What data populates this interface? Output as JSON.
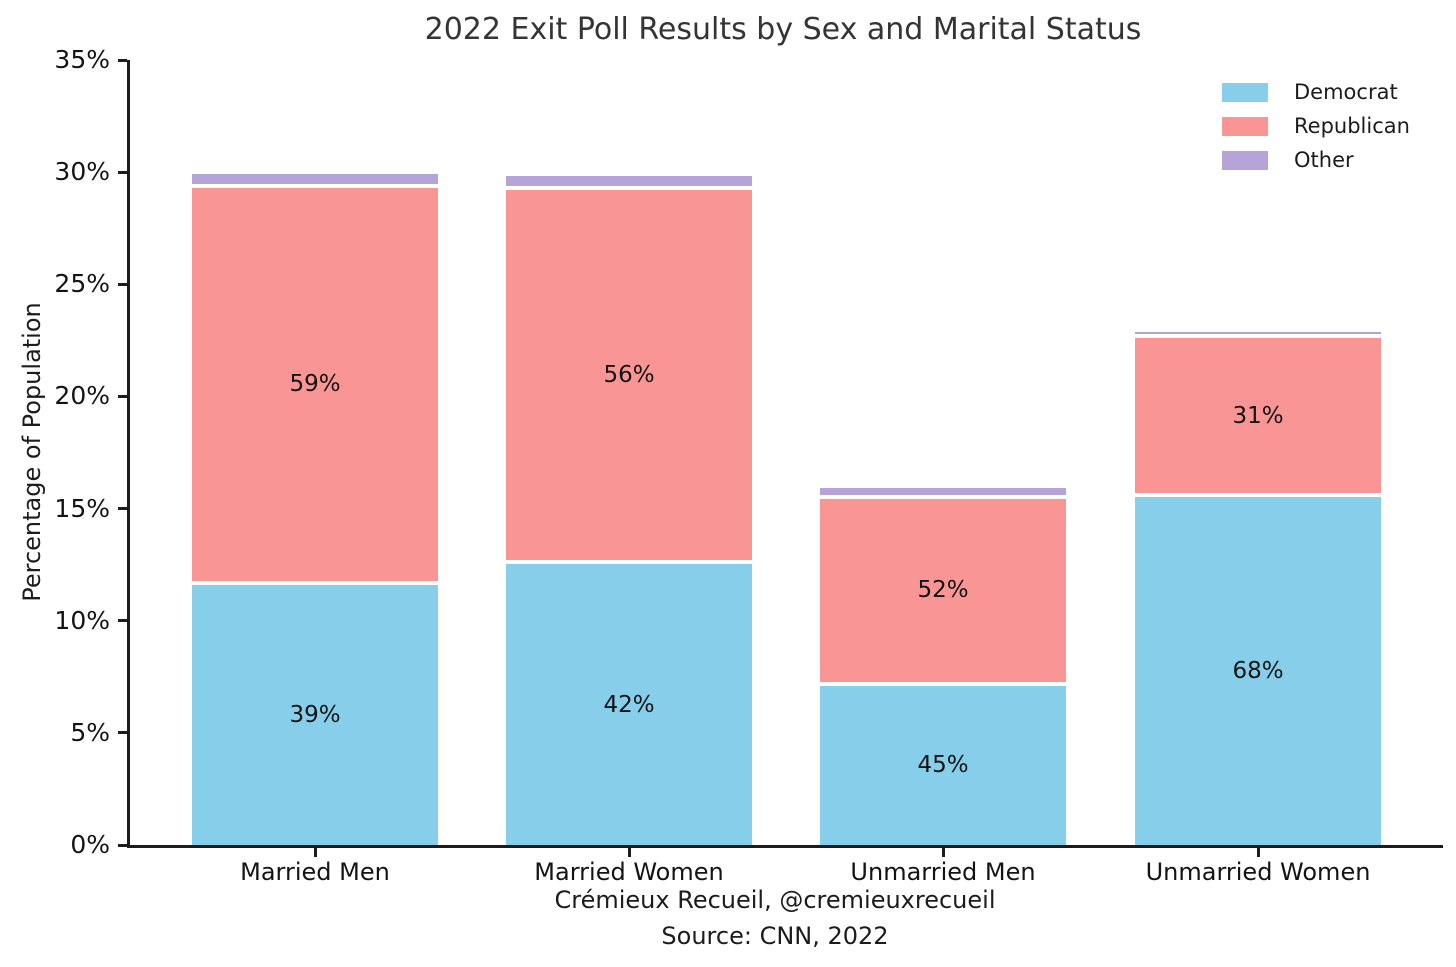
{
  "chart_data": {
    "type": "bar",
    "stacked": true,
    "title": "2022 Exit Poll Results by Sex and Marital Status",
    "ylabel": "Percentage of Population",
    "xlabel_lines": [
      "Crémieux Recueil, @cremieuxrecueil",
      "Source: CNN, 2022"
    ],
    "categories": [
      "Married Men",
      "Married Women",
      "Unmarried Men",
      "Unmarried Women"
    ],
    "ylim": [
      0,
      35
    ],
    "yticks": [
      {
        "value": 0,
        "label": "0%"
      },
      {
        "value": 5,
        "label": "5%"
      },
      {
        "value": 10,
        "label": "10%"
      },
      {
        "value": 15,
        "label": "15%"
      },
      {
        "value": 20,
        "label": "20%"
      },
      {
        "value": 25,
        "label": "25%"
      },
      {
        "value": 30,
        "label": "30%"
      },
      {
        "value": 35,
        "label": "35%"
      }
    ],
    "series": [
      {
        "name": "Democrat",
        "color": "#87CEEB",
        "values": [
          11.7,
          12.6,
          7.2,
          15.6
        ],
        "segment_labels": [
          "39%",
          "42%",
          "45%",
          "68%"
        ]
      },
      {
        "name": "Republican",
        "color": "#FA9595",
        "values": [
          17.7,
          16.7,
          8.3,
          7.1
        ],
        "segment_labels": [
          "59%",
          "56%",
          "52%",
          "31%"
        ]
      },
      {
        "name": "Other",
        "color": "#B6A4D9",
        "values": [
          0.6,
          0.6,
          0.5,
          0.25
        ],
        "segment_labels": [
          "",
          "",
          "",
          ""
        ]
      }
    ],
    "group_totals": [
      30.0,
      29.9,
      16.0,
      22.95
    ],
    "legend": {
      "position": "upper right",
      "frame": false,
      "entries": [
        "Democrat",
        "Republican",
        "Other"
      ]
    },
    "grid": false
  }
}
